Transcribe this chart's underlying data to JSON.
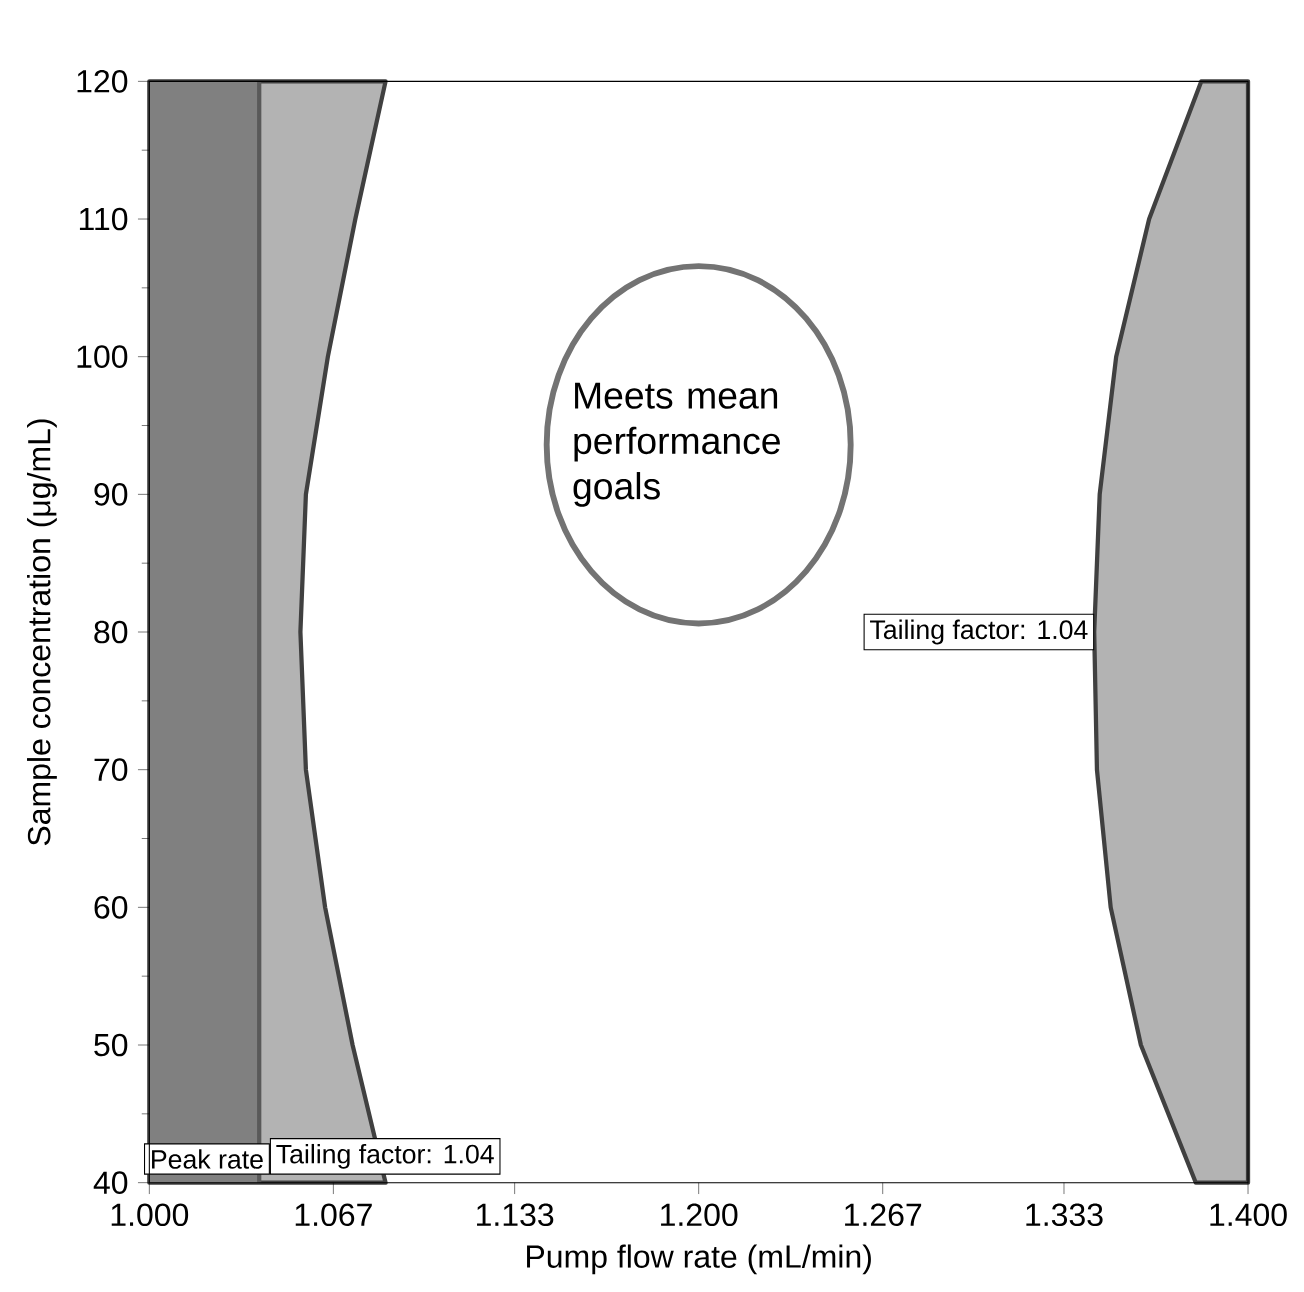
{
  "chart_data": {
    "type": "area",
    "xlabel": "Pump flow rate (mL/min)",
    "ylabel": "Sample concentration (μg/mL)",
    "xlim": [
      1.0,
      1.4
    ],
    "ylim": [
      40,
      120
    ],
    "xticks": [
      {
        "value": 1.0,
        "label": "1.000"
      },
      1.067,
      1.133,
      {
        "value": 1.2,
        "label": "1.200"
      },
      1.267,
      1.333,
      {
        "value": 1.4,
        "label": "1.400"
      }
    ],
    "yticks": [
      40,
      50,
      60,
      70,
      80,
      90,
      100,
      110,
      120
    ],
    "series": [
      {
        "name": "Tailing factor: 1.04",
        "color": "#b3b3b3",
        "x": [
          1.0,
          1.086,
          1.075,
          1.065,
          1.057,
          1.055,
          1.057,
          1.064,
          1.074,
          1.086,
          1.0
        ],
        "values": [
          120,
          120,
          110,
          100,
          90,
          80,
          70,
          60,
          50,
          40,
          40
        ]
      },
      {
        "name": "Tailing factor: 1.04",
        "color": "#b3b3b3",
        "x": [
          1.4,
          1.383,
          1.364,
          1.352,
          1.346,
          1.344,
          1.345,
          1.35,
          1.361,
          1.381,
          1.4
        ],
        "values": [
          120,
          120,
          110,
          100,
          90,
          80,
          70,
          60,
          50,
          40,
          40
        ]
      }
    ],
    "bands": [
      {
        "axis": "x",
        "from": 1.0,
        "to": 1.04,
        "label": "Peak rate",
        "color": "#808080"
      }
    ],
    "ref_lines": [
      {
        "axis": "x",
        "value": 1.04,
        "color": "#595959"
      }
    ],
    "annotations": [
      "Meets mean performance goals"
    ]
  }
}
